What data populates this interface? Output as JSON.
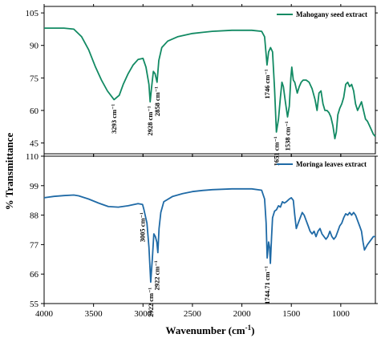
{
  "chart_data": [
    {
      "type": "line",
      "ylim": [
        40,
        108
      ],
      "xlim": [
        4000,
        650
      ],
      "y_ticks": [
        105,
        90,
        75,
        60,
        45
      ],
      "color": "#128a63",
      "series": [
        {
          "name": "Mahogany seed extract",
          "points": [
            [
              4000,
              98
            ],
            [
              3800,
              98
            ],
            [
              3700,
              97.5
            ],
            [
              3620,
              94
            ],
            [
              3550,
              88
            ],
            [
              3480,
              80
            ],
            [
              3420,
              74
            ],
            [
              3360,
              69
            ],
            [
              3293,
              65
            ],
            [
              3240,
              67
            ],
            [
              3200,
              72
            ],
            [
              3150,
              77
            ],
            [
              3100,
              81
            ],
            [
              3050,
              83.5
            ],
            [
              3000,
              84
            ],
            [
              2970,
              80
            ],
            [
              2940,
              72
            ],
            [
              2928,
              64
            ],
            [
              2915,
              70
            ],
            [
              2895,
              78
            ],
            [
              2878,
              77
            ],
            [
              2858,
              73
            ],
            [
              2840,
              83
            ],
            [
              2810,
              89
            ],
            [
              2750,
              92
            ],
            [
              2650,
              94
            ],
            [
              2500,
              95.5
            ],
            [
              2300,
              96.5
            ],
            [
              2100,
              97
            ],
            [
              1900,
              97
            ],
            [
              1800,
              96.5
            ],
            [
              1770,
              94
            ],
            [
              1746,
              81
            ],
            [
              1730,
              87
            ],
            [
              1710,
              89
            ],
            [
              1690,
              87
            ],
            [
              1670,
              70
            ],
            [
              1651,
              50
            ],
            [
              1630,
              56
            ],
            [
              1610,
              66
            ],
            [
              1595,
              73
            ],
            [
              1580,
              71
            ],
            [
              1560,
              64
            ],
            [
              1538,
              57
            ],
            [
              1520,
              62
            ],
            [
              1505,
              75
            ],
            [
              1495,
              80
            ],
            [
              1480,
              74
            ],
            [
              1465,
              73
            ],
            [
              1440,
              68
            ],
            [
              1420,
              71
            ],
            [
              1400,
              73
            ],
            [
              1380,
              74
            ],
            [
              1350,
              74
            ],
            [
              1320,
              73
            ],
            [
              1290,
              70
            ],
            [
              1260,
              65
            ],
            [
              1240,
              60
            ],
            [
              1220,
              68
            ],
            [
              1200,
              69
            ],
            [
              1180,
              63
            ],
            [
              1160,
              60
            ],
            [
              1140,
              60
            ],
            [
              1120,
              59
            ],
            [
              1100,
              57
            ],
            [
              1080,
              53
            ],
            [
              1060,
              47
            ],
            [
              1045,
              50
            ],
            [
              1030,
              58
            ],
            [
              1010,
              61
            ],
            [
              990,
              63
            ],
            [
              970,
              66
            ],
            [
              950,
              72
            ],
            [
              930,
              73
            ],
            [
              910,
              71
            ],
            [
              890,
              72
            ],
            [
              870,
              69
            ],
            [
              850,
              63
            ],
            [
              830,
              60
            ],
            [
              810,
              62
            ],
            [
              790,
              64
            ],
            [
              770,
              60
            ],
            [
              750,
              56
            ],
            [
              730,
              55
            ],
            [
              710,
              53
            ],
            [
              690,
              51
            ],
            [
              670,
              49
            ],
            [
              650,
              48
            ]
          ]
        }
      ],
      "annotations": [
        {
          "text": "3293 cm⁻¹",
          "x": 3293,
          "y": 63
        },
        {
          "text": "2928 cm⁻¹",
          "x": 2928,
          "y": 62
        },
        {
          "text": "2858 cm⁻¹",
          "x": 2858,
          "y": 71
        },
        {
          "text": "1746 cm⁻¹",
          "x": 1746,
          "y": 79
        },
        {
          "text": "1651 cm⁻¹",
          "x": 1651,
          "y": 48
        },
        {
          "text": "1538 cm⁻¹",
          "x": 1538,
          "y": 55
        }
      ]
    },
    {
      "type": "line",
      "ylim": [
        55,
        110
      ],
      "xlim": [
        4000,
        650
      ],
      "y_ticks": [
        110,
        99,
        88,
        77,
        66,
        55
      ],
      "color": "#1f6aa6",
      "series": [
        {
          "name": "Moringa leaves extract",
          "points": [
            [
              4000,
              94.5
            ],
            [
              3900,
              95
            ],
            [
              3800,
              95.3
            ],
            [
              3700,
              95.5
            ],
            [
              3650,
              95.2
            ],
            [
              3550,
              94
            ],
            [
              3450,
              92.5
            ],
            [
              3350,
              91.2
            ],
            [
              3250,
              91
            ],
            [
              3150,
              91.5
            ],
            [
              3050,
              92.3
            ],
            [
              3005,
              92
            ],
            [
              2990,
              90
            ],
            [
              2960,
              85
            ],
            [
              2940,
              76
            ],
            [
              2922,
              63
            ],
            [
              2905,
              72
            ],
            [
              2890,
              81
            ],
            [
              2875,
              80
            ],
            [
              2860,
              78
            ],
            [
              2850,
              74
            ],
            [
              2838,
              83
            ],
            [
              2820,
              89
            ],
            [
              2790,
              93
            ],
            [
              2700,
              95
            ],
            [
              2600,
              96
            ],
            [
              2500,
              96.8
            ],
            [
              2400,
              97.2
            ],
            [
              2300,
              97.5
            ],
            [
              2100,
              97.8
            ],
            [
              1900,
              97.8
            ],
            [
              1800,
              97.3
            ],
            [
              1770,
              94
            ],
            [
              1755,
              85
            ],
            [
              1744,
              72
            ],
            [
              1730,
              78
            ],
            [
              1720,
              76
            ],
            [
              1712,
              70
            ],
            [
              1700,
              80
            ],
            [
              1690,
              87
            ],
            [
              1670,
              89.5
            ],
            [
              1650,
              90
            ],
            [
              1630,
              91.5
            ],
            [
              1610,
              91
            ],
            [
              1590,
              93
            ],
            [
              1570,
              92.5
            ],
            [
              1550,
              93
            ],
            [
              1520,
              94
            ],
            [
              1500,
              94.5
            ],
            [
              1480,
              93.5
            ],
            [
              1465,
              88
            ],
            [
              1450,
              83
            ],
            [
              1430,
              85
            ],
            [
              1410,
              87
            ],
            [
              1390,
              89
            ],
            [
              1370,
              88
            ],
            [
              1350,
              86
            ],
            [
              1330,
              84
            ],
            [
              1310,
              82
            ],
            [
              1290,
              81
            ],
            [
              1270,
              82
            ],
            [
              1250,
              80
            ],
            [
              1230,
              82
            ],
            [
              1210,
              83
            ],
            [
              1190,
              81
            ],
            [
              1170,
              80
            ],
            [
              1150,
              79
            ],
            [
              1130,
              80
            ],
            [
              1110,
              82
            ],
            [
              1090,
              80
            ],
            [
              1070,
              79
            ],
            [
              1050,
              80
            ],
            [
              1030,
              82
            ],
            [
              1010,
              84
            ],
            [
              990,
              85
            ],
            [
              970,
              87
            ],
            [
              950,
              88.5
            ],
            [
              930,
              88
            ],
            [
              910,
              89
            ],
            [
              890,
              88
            ],
            [
              870,
              89
            ],
            [
              850,
              88
            ],
            [
              830,
              86
            ],
            [
              810,
              84
            ],
            [
              790,
              82
            ],
            [
              775,
              78
            ],
            [
              760,
              75
            ],
            [
              745,
              76
            ],
            [
              730,
              77
            ],
            [
              710,
              78
            ],
            [
              690,
              79
            ],
            [
              670,
              80
            ],
            [
              650,
              80
            ]
          ]
        }
      ],
      "annotations": [
        {
          "text": "3005 cm⁻¹",
          "x": 3005,
          "y": 89
        },
        {
          "text": "2922 cm⁻¹",
          "x": 2922,
          "y": 61
        },
        {
          "text": "2922 cm⁻¹",
          "x": 2862,
          "y": 71
        },
        {
          "text": "1744.71 cm⁻¹",
          "x": 1744,
          "y": 69
        }
      ]
    }
  ],
  "x_ticks": [
    4000,
    3500,
    3000,
    2500,
    2000,
    1500,
    1000
  ],
  "labels": {
    "xlabel": "Wavenumber (cm",
    "xlabel_sup": "-1",
    "xlabel_end": ")",
    "ylabel": "% Transmittance"
  }
}
